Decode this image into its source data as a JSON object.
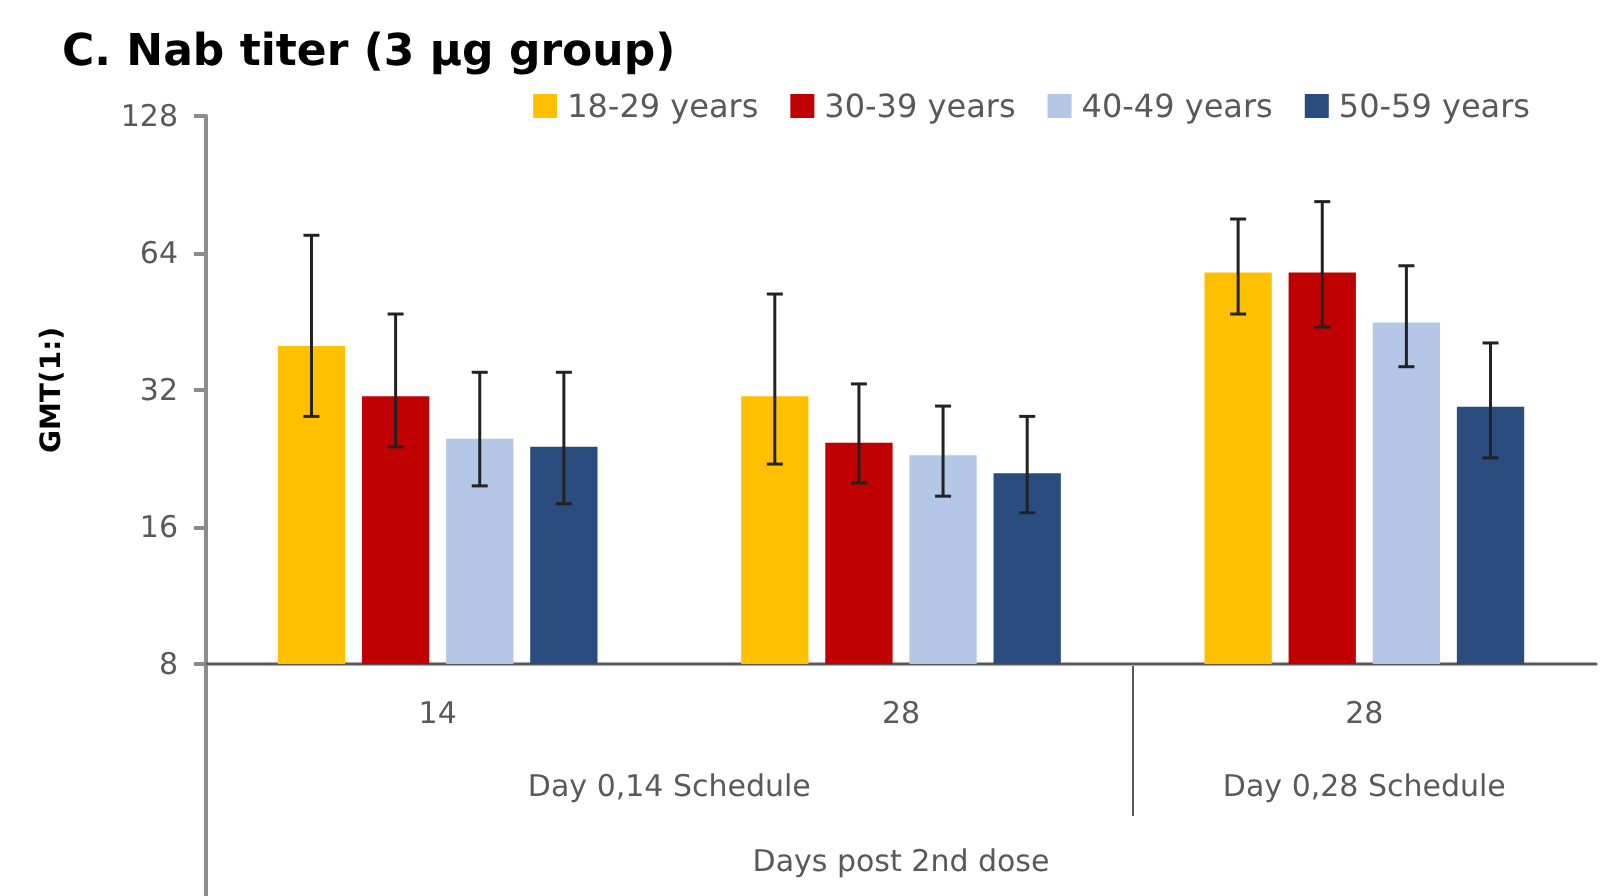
{
  "chart_data": {
    "type": "bar",
    "title": "C. Nab titer (3 µg group)",
    "xlabel": "Days post 2nd dose",
    "ylabel": "GMT(1:)",
    "categories": [
      "14",
      "28",
      "28"
    ],
    "series": [
      {
        "name": "18-29 years",
        "color": "#ffc000",
        "values": [
          40,
          31,
          58
        ],
        "errors": [
          [
            28,
            70
          ],
          [
            22,
            52
          ],
          [
            47,
            76
          ]
        ]
      },
      {
        "name": "30-39 years",
        "color": "#c00000",
        "values": [
          31,
          24.5,
          58
        ],
        "errors": [
          [
            24,
            47
          ],
          [
            20,
            33
          ],
          [
            44,
            83
          ]
        ]
      },
      {
        "name": "40-49 years",
        "color": "#b4c7e7",
        "values": [
          25,
          23,
          45
        ],
        "errors": [
          [
            19.7,
            35
          ],
          [
            18.7,
            29.5
          ],
          [
            36,
            60
          ]
        ]
      },
      {
        "name": "50-59 years",
        "color": "#2b4c7e",
        "values": [
          24,
          21,
          29.4
        ],
        "errors": [
          [
            18,
            35
          ],
          [
            17.2,
            28
          ],
          [
            22.7,
            40.6
          ]
        ]
      }
    ],
    "log": "y",
    "ylim": [
      8,
      128
    ],
    "yticks": [
      8,
      16,
      32,
      64,
      128
    ],
    "legend": "top right",
    "annotations": [
      "Day 0,14 Schedule",
      "Day 0,28 Schedule"
    ]
  }
}
